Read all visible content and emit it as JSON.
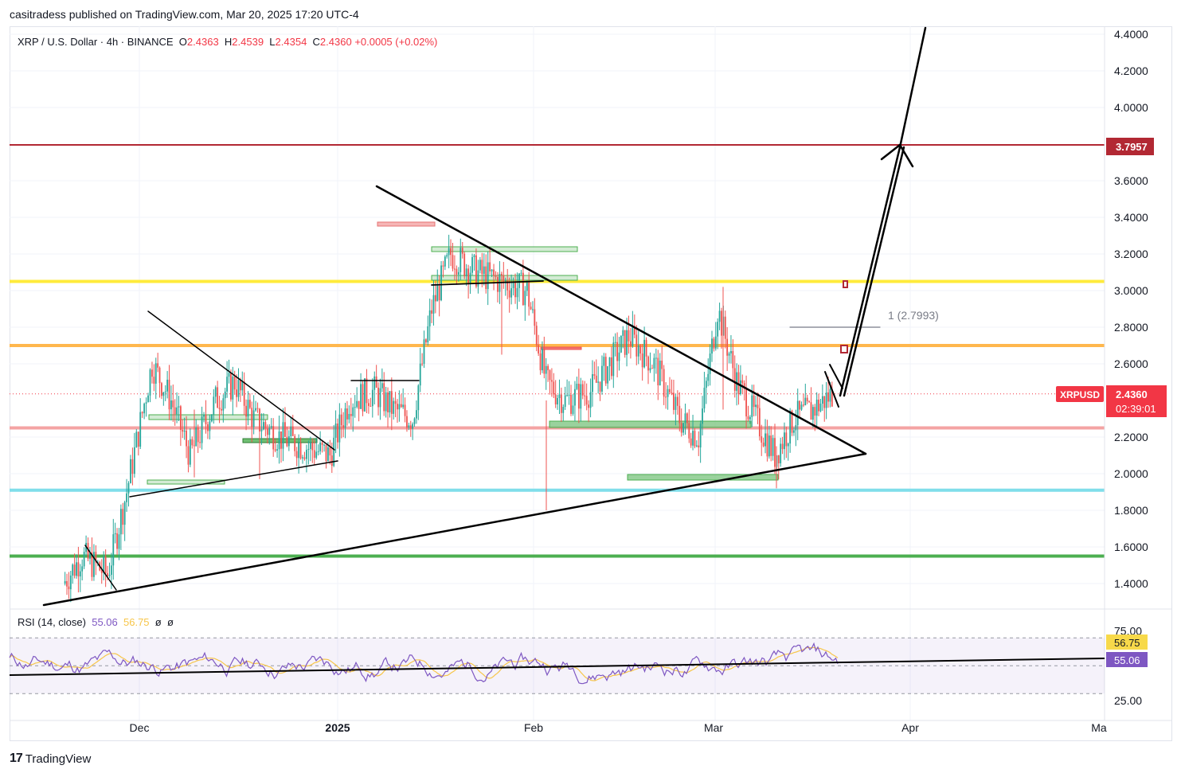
{
  "header": {
    "publisher_line": "casitradess published on TradingView.com, Mar 20, 2025 17:20 UTC-4"
  },
  "legend": {
    "symbol": "XRP / U.S. Dollar · 4h · BINANCE",
    "o_label": "O",
    "o_value": "2.4363",
    "h_label": "H",
    "h_value": "2.4539",
    "l_label": "L",
    "l_value": "2.4354",
    "c_label": "C",
    "c_value": "2.4360",
    "change": "+0.0005 (+0.02%)"
  },
  "rsi_legend": {
    "name": "RSI (14, close)",
    "rsi_value": "55.06",
    "ma_value": "56.75",
    "extra1": "ø",
    "extra2": "ø"
  },
  "price_axis": {
    "ticks": [
      "4.4000",
      "4.2000",
      "4.0000",
      "3.6000",
      "3.4000",
      "3.2000",
      "3.0000",
      "2.8000",
      "2.6000",
      "2.2000",
      "2.0000",
      "1.8000",
      "1.6000",
      "1.4000"
    ],
    "badge_target": "3.7957",
    "badge_symbol": "XRPUSD",
    "badge_price": "2.4360",
    "badge_countdown": "02:39:01"
  },
  "rsi_axis": {
    "ticks": [
      "75.00",
      "50.00",
      "25.00"
    ],
    "badge_ma": "56.75",
    "badge_rsi": "55.06"
  },
  "time_axis": {
    "labels": [
      "Dec",
      "2025",
      "Feb",
      "Mar",
      "Apr",
      "Ma"
    ]
  },
  "annotations": {
    "fib_label": "1 (2.7993)"
  },
  "footer": {
    "logo_mark": "17",
    "brand": "TradingView"
  },
  "colors": {
    "up": "#26a69a",
    "down": "#ef5350",
    "target_line": "#b22833",
    "yellow_level": "#ffeb3b",
    "orange_level": "#ffb74d",
    "pink_level": "#f4a3a3",
    "cyan_level": "#80deea",
    "green_level": "#4caf50",
    "rsi_line": "#7e57c2",
    "rsi_ma": "#f7c64a",
    "price_badge": "#f23645"
  },
  "chart_data": {
    "type": "candlestick",
    "title": "XRP / U.S. Dollar · 4h · BINANCE",
    "ylim": [
      1.3,
      4.45
    ],
    "x_labels": [
      "Dec",
      "2025",
      "Feb",
      "Mar",
      "Apr"
    ],
    "horizontal_levels": [
      {
        "price": 3.7957,
        "color": "#b22833",
        "label": "3.7957"
      },
      {
        "price": 3.05,
        "color": "#ffeb3b"
      },
      {
        "price": 2.7,
        "color": "#ffb74d"
      },
      {
        "price": 2.25,
        "color": "#f4a3a3"
      },
      {
        "price": 1.91,
        "color": "#80deea"
      },
      {
        "price": 1.55,
        "color": "#4caf50"
      }
    ],
    "close_path": [
      {
        "date": "2024-11-19",
        "price": 1.4
      },
      {
        "date": "2024-11-22",
        "price": 1.55
      },
      {
        "date": "2024-11-26",
        "price": 1.45
      },
      {
        "date": "2024-11-29",
        "price": 1.9
      },
      {
        "date": "2024-12-03",
        "price": 2.6
      },
      {
        "date": "2024-12-06",
        "price": 2.4
      },
      {
        "date": "2024-12-09",
        "price": 2.1
      },
      {
        "date": "2024-12-13",
        "price": 2.4
      },
      {
        "date": "2024-12-16",
        "price": 2.5
      },
      {
        "date": "2024-12-19",
        "price": 2.3
      },
      {
        "date": "2024-12-23",
        "price": 2.2
      },
      {
        "date": "2024-12-27",
        "price": 2.15
      },
      {
        "date": "2024-12-31",
        "price": 2.1
      },
      {
        "date": "2025-01-03",
        "price": 2.4
      },
      {
        "date": "2025-01-07",
        "price": 2.45
      },
      {
        "date": "2025-01-10",
        "price": 2.35
      },
      {
        "date": "2025-01-13",
        "price": 2.3
      },
      {
        "date": "2025-01-16",
        "price": 2.9
      },
      {
        "date": "2025-01-19",
        "price": 3.2
      },
      {
        "date": "2025-01-23",
        "price": 3.1
      },
      {
        "date": "2025-01-27",
        "price": 3.05
      },
      {
        "date": "2025-01-31",
        "price": 3.0
      },
      {
        "date": "2025-02-03",
        "price": 2.5
      },
      {
        "date": "2025-02-06",
        "price": 2.4
      },
      {
        "date": "2025-02-10",
        "price": 2.45
      },
      {
        "date": "2025-02-13",
        "price": 2.6
      },
      {
        "date": "2025-02-16",
        "price": 2.75
      },
      {
        "date": "2025-02-20",
        "price": 2.6
      },
      {
        "date": "2025-02-24",
        "price": 2.3
      },
      {
        "date": "2025-02-27",
        "price": 2.2
      },
      {
        "date": "2025-03-02",
        "price": 2.9
      },
      {
        "date": "2025-03-05",
        "price": 2.5
      },
      {
        "date": "2025-03-08",
        "price": 2.3
      },
      {
        "date": "2025-03-11",
        "price": 2.1
      },
      {
        "date": "2025-03-14",
        "price": 2.3
      },
      {
        "date": "2025-03-17",
        "price": 2.35
      },
      {
        "date": "2025-03-20",
        "price": 2.436
      }
    ],
    "projection": {
      "from_price": 2.436,
      "to_price": 3.7957,
      "fib_level": 2.7993
    }
  }
}
